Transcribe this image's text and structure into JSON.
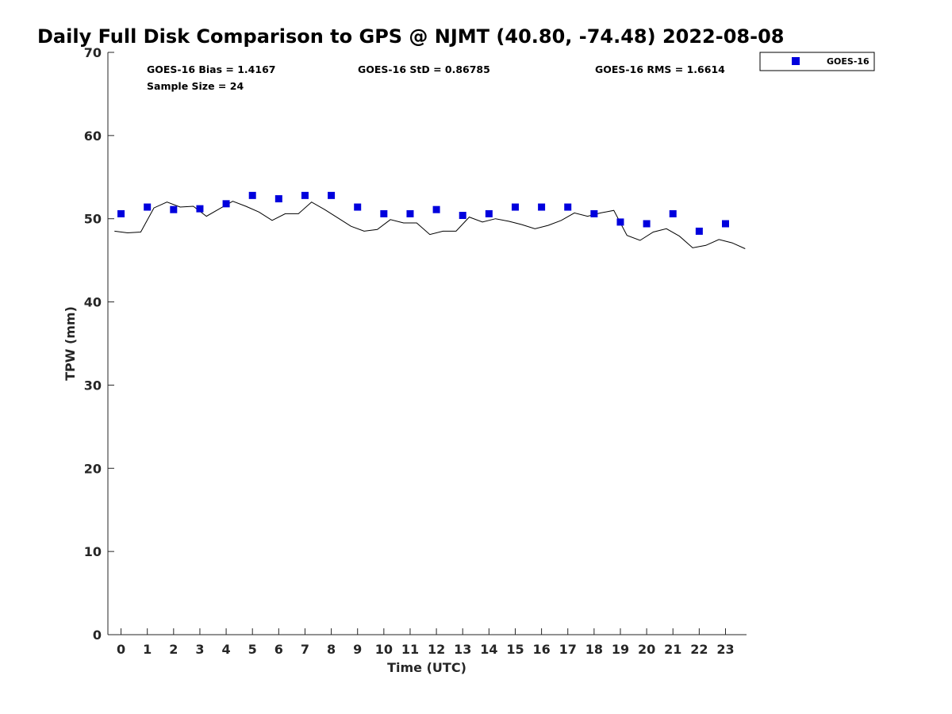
{
  "chart_data": {
    "type": "scatter",
    "title": "Daily Full Disk Comparison to GPS @ NJMT (40.80, -74.48) 2022-08-08",
    "xlabel": "Time (UTC)",
    "ylabel": "TPW (mm)",
    "xlim": [
      -0.5,
      23.8
    ],
    "ylim": [
      0,
      70
    ],
    "x_ticks": [
      0,
      1,
      2,
      3,
      4,
      5,
      6,
      7,
      8,
      9,
      10,
      11,
      12,
      13,
      14,
      15,
      16,
      17,
      18,
      19,
      20,
      21,
      22,
      23
    ],
    "y_ticks": [
      0,
      10,
      20,
      30,
      40,
      50,
      60,
      70
    ],
    "grid": false,
    "legend_position": "top-right, outside plot",
    "legend": [
      "GOES-16"
    ],
    "stats": {
      "bias": "GOES-16 Bias = 1.4167",
      "std": "GOES-16 StD = 0.86785",
      "rms": "GOES-16 RMS = 1.6614",
      "sample": "Sample Size = 24"
    },
    "series": [
      {
        "name": "GOES-16",
        "kind": "scatter",
        "marker": "square",
        "color": "#0000dd",
        "x": [
          0,
          1,
          2,
          3,
          4,
          5,
          6,
          7,
          8,
          9,
          10,
          11,
          12,
          13,
          14,
          15,
          16,
          17,
          18,
          19,
          20,
          21,
          22,
          23
        ],
        "y": [
          50.6,
          51.4,
          51.1,
          51.2,
          51.8,
          52.8,
          52.4,
          52.8,
          52.8,
          51.4,
          50.6,
          50.6,
          51.1,
          50.4,
          50.6,
          51.4,
          51.4,
          51.4,
          50.6,
          49.6,
          49.4,
          50.6,
          48.5,
          49.4
        ]
      },
      {
        "kind": "line",
        "color": "#000000",
        "x": [
          -0.25,
          0.25,
          0.75,
          1.25,
          1.75,
          2.25,
          2.75,
          3.25,
          3.75,
          4.25,
          4.75,
          5.25,
          5.75,
          6.25,
          6.75,
          7.25,
          7.75,
          8.25,
          8.75,
          9.25,
          9.75,
          10.25,
          10.75,
          11.25,
          11.75,
          12.25,
          12.75,
          13.25,
          13.75,
          14.25,
          14.75,
          15.25,
          15.75,
          16.25,
          16.75,
          17.25,
          17.75,
          18.25,
          18.75,
          19.25,
          19.75,
          20.25,
          20.75,
          21.25,
          21.75,
          22.25,
          22.75,
          23.25,
          23.75
        ],
        "y": [
          48.5,
          48.3,
          48.4,
          51.3,
          52.0,
          51.4,
          51.5,
          50.3,
          51.2,
          52.1,
          51.5,
          50.8,
          49.8,
          50.6,
          50.6,
          52.0,
          51.1,
          50.1,
          49.1,
          48.5,
          48.7,
          49.9,
          49.5,
          49.5,
          48.1,
          48.5,
          48.5,
          50.2,
          49.6,
          50.0,
          49.7,
          49.3,
          48.8,
          49.2,
          49.8,
          50.7,
          50.3,
          50.7,
          51.0,
          48.0,
          47.4,
          48.4,
          48.8,
          47.9,
          46.5,
          46.8,
          47.5,
          47.1,
          46.4
        ]
      }
    ]
  }
}
